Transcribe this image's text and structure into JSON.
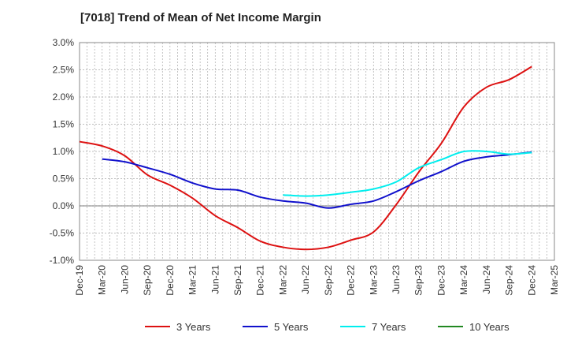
{
  "chart_data": {
    "type": "line",
    "title": "[7018]  Trend of Mean of Net Income Margin",
    "xlabel": "",
    "ylabel": "",
    "x_ticks": [
      "Dec-19",
      "Mar-20",
      "Jun-20",
      "Sep-20",
      "Dec-20",
      "Mar-21",
      "Jun-21",
      "Sep-21",
      "Dec-21",
      "Mar-22",
      "Jun-22",
      "Sep-22",
      "Dec-22",
      "Mar-23",
      "Jun-23",
      "Sep-23",
      "Dec-23",
      "Mar-24",
      "Jun-24",
      "Sep-24",
      "Dec-24",
      "Mar-25"
    ],
    "y_ticks": [
      "3.0%",
      "2.5%",
      "2.0%",
      "1.5%",
      "1.0%",
      "0.5%",
      "0.0%",
      "-0.5%",
      "-1.0%"
    ],
    "ylim": [
      -1.0,
      3.0
    ],
    "grid": true,
    "legend_position": "bottom",
    "series": [
      {
        "name": "3 Years",
        "color": "#dd1111",
        "x": [
          "Dec-19",
          "Mar-20",
          "Jun-20",
          "Sep-20",
          "Dec-20",
          "Mar-21",
          "Jun-21",
          "Sep-21",
          "Dec-21",
          "Mar-22",
          "Jun-22",
          "Sep-22",
          "Dec-22",
          "Mar-23",
          "Jun-23",
          "Sep-23",
          "Dec-23",
          "Mar-24",
          "Jun-24",
          "Sep-24",
          "Dec-24"
        ],
        "values": [
          1.18,
          1.1,
          0.92,
          0.57,
          0.38,
          0.14,
          -0.18,
          -0.4,
          -0.65,
          -0.76,
          -0.8,
          -0.76,
          -0.63,
          -0.48,
          0.02,
          0.62,
          1.15,
          1.82,
          2.18,
          2.32,
          2.56
        ]
      },
      {
        "name": "5 Years",
        "color": "#1111cc",
        "x": [
          "Mar-20",
          "Jun-20",
          "Sep-20",
          "Dec-20",
          "Mar-21",
          "Jun-21",
          "Sep-21",
          "Dec-21",
          "Mar-22",
          "Jun-22",
          "Sep-22",
          "Dec-22",
          "Mar-23",
          "Jun-23",
          "Sep-23",
          "Dec-23",
          "Mar-24",
          "Jun-24",
          "Sep-24",
          "Dec-24"
        ],
        "values": [
          0.86,
          0.81,
          0.7,
          0.58,
          0.42,
          0.31,
          0.29,
          0.16,
          0.09,
          0.05,
          -0.04,
          0.03,
          0.09,
          0.26,
          0.46,
          0.63,
          0.82,
          0.9,
          0.94,
          0.99
        ]
      },
      {
        "name": "7 Years",
        "color": "#00eeee",
        "x": [
          "Mar-22",
          "Jun-22",
          "Sep-22",
          "Dec-22",
          "Mar-23",
          "Jun-23",
          "Sep-23",
          "Dec-23",
          "Mar-24",
          "Jun-24",
          "Sep-24",
          "Dec-24"
        ],
        "values": [
          0.2,
          0.18,
          0.2,
          0.25,
          0.31,
          0.44,
          0.7,
          0.85,
          1.0,
          1.0,
          0.95,
          0.98
        ]
      },
      {
        "name": "10 Years",
        "color": "#228822",
        "x": [],
        "values": []
      }
    ]
  }
}
